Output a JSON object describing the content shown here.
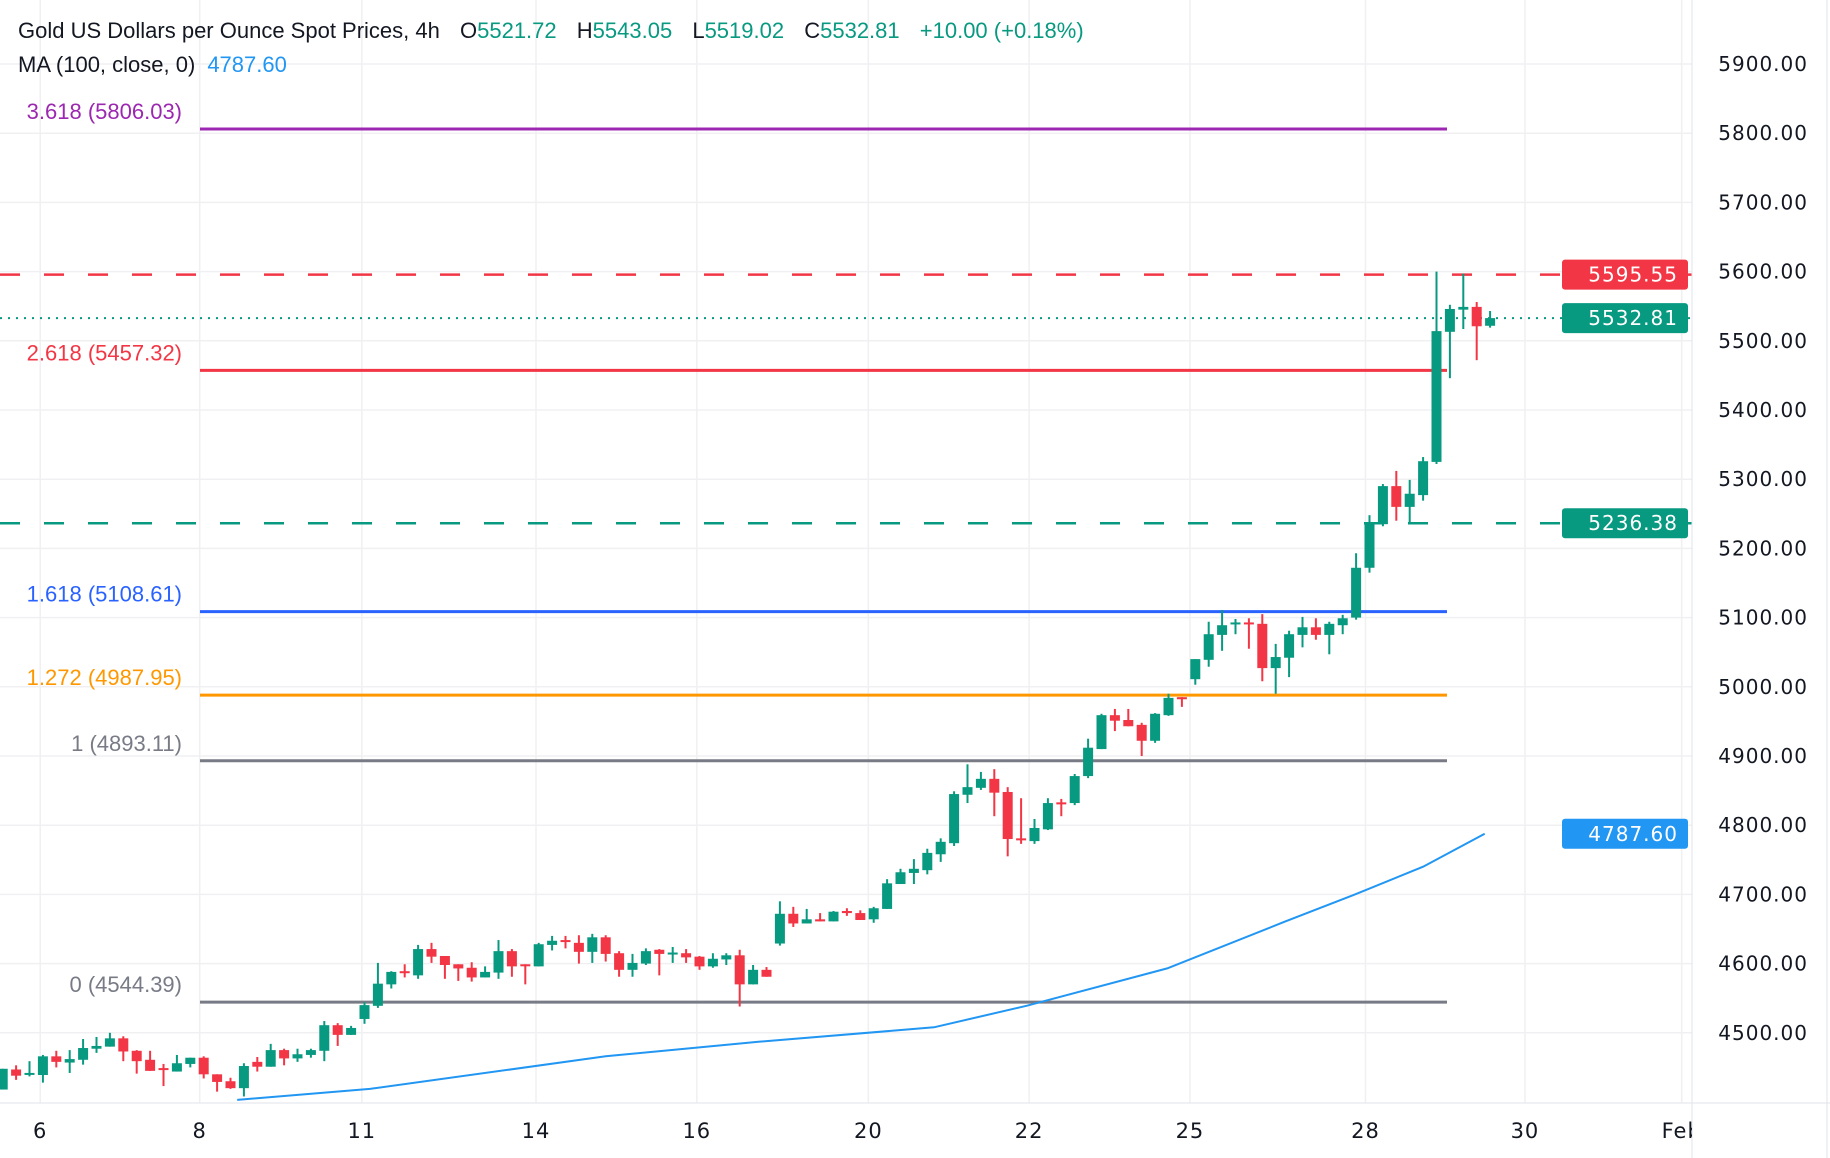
{
  "header": {
    "title": "Gold US Dollars per Ounce Spot Prices, 4h",
    "o_label": "O",
    "o_value": "5521.72",
    "h_label": "H",
    "h_value": "5543.05",
    "l_label": "L",
    "l_value": "5519.02",
    "c_label": "C",
    "c_value": "5532.81",
    "change": "+10.00 (+0.18%)"
  },
  "ma_legend": {
    "label": "MA (100, close, 0)",
    "value": "4787.60"
  },
  "colors": {
    "up": "#089981",
    "down": "#f23645",
    "ma": "#2196f3",
    "grid": "#f0f0f3"
  },
  "chart_data": {
    "type": "candlestick",
    "title": "Gold US Dollars per Ounce Spot Prices, 4h",
    "ylim": [
      4420,
      5960
    ],
    "grid": true,
    "y_ticks": [
      "5900.00",
      "5800.00",
      "5700.00",
      "5600.00",
      "5500.00",
      "5400.00",
      "5300.00",
      "5200.00",
      "5100.00",
      "5000.00",
      "4900.00",
      "4800.00",
      "4700.00",
      "4600.00",
      "4500.00"
    ],
    "x_ticks": [
      {
        "label": "6",
        "bar": 2.8
      },
      {
        "label": "8",
        "bar": 14.7
      },
      {
        "label": "11",
        "bar": 26.8
      },
      {
        "label": "14",
        "bar": 39.8
      },
      {
        "label": "16",
        "bar": 51.8
      },
      {
        "label": "20",
        "bar": 64.6
      },
      {
        "label": "22",
        "bar": 76.6
      },
      {
        "label": "25",
        "bar": 88.6
      },
      {
        "label": "28",
        "bar": 101.7
      },
      {
        "label": "30",
        "bar": 113.6
      },
      {
        "label": "Feb",
        "bar": 125.3
      }
    ],
    "candles_ohlc": [
      [
        4418,
        4448,
        4418,
        4448
      ],
      [
        4447,
        4453,
        4432,
        4438
      ],
      [
        4440,
        4459,
        4437,
        4442
      ],
      [
        4439,
        4468,
        4428,
        4466
      ],
      [
        4466,
        4474,
        4450,
        4458
      ],
      [
        4457,
        4475,
        4442,
        4462
      ],
      [
        4461,
        4491,
        4454,
        4478
      ],
      [
        4477,
        4494,
        4471,
        4481
      ],
      [
        4480,
        4500,
        4480,
        4492
      ],
      [
        4492,
        4495,
        4459,
        4473
      ],
      [
        4474,
        4475,
        4441,
        4459
      ],
      [
        4461,
        4474,
        4445,
        4445
      ],
      [
        4449,
        4455,
        4423,
        4447
      ],
      [
        4444,
        4468,
        4444,
        4456
      ],
      [
        4455,
        4464,
        4450,
        4464
      ],
      [
        4464,
        4466,
        4434,
        4440
      ],
      [
        4440,
        4440,
        4415,
        4429
      ],
      [
        4430,
        4435,
        4419,
        4420
      ],
      [
        4420,
        4456,
        4408,
        4452
      ],
      [
        4458,
        4465,
        4444,
        4451
      ],
      [
        4451,
        4484,
        4451,
        4475
      ],
      [
        4475,
        4477,
        4453,
        4463
      ],
      [
        4463,
        4477,
        4458,
        4469
      ],
      [
        4468,
        4477,
        4464,
        4475
      ],
      [
        4474,
        4517,
        4459,
        4511
      ],
      [
        4511,
        4514,
        4481,
        4497
      ],
      [
        4497,
        4510,
        4497,
        4507
      ],
      [
        4520,
        4544,
        4513,
        4540
      ],
      [
        4539,
        4601,
        4536,
        4571
      ],
      [
        4570,
        4589,
        4564,
        4588
      ],
      [
        4589,
        4599,
        4580,
        4587
      ],
      [
        4583,
        4627,
        4578,
        4621
      ],
      [
        4621,
        4630,
        4601,
        4610
      ],
      [
        4611,
        4611,
        4578,
        4598
      ],
      [
        4599,
        4599,
        4575,
        4593
      ],
      [
        4594,
        4602,
        4574,
        4580
      ],
      [
        4580,
        4596,
        4580,
        4588
      ],
      [
        4587,
        4634,
        4578,
        4618
      ],
      [
        4618,
        4621,
        4581,
        4596
      ],
      [
        4599,
        4599,
        4570,
        4597
      ],
      [
        4596,
        4630,
        4596,
        4628
      ],
      [
        4627,
        4640,
        4619,
        4633
      ],
      [
        4634,
        4640,
        4622,
        4633
      ],
      [
        4630,
        4641,
        4600,
        4617
      ],
      [
        4617,
        4643,
        4601,
        4638
      ],
      [
        4638,
        4641,
        4603,
        4614
      ],
      [
        4615,
        4618,
        4581,
        4591
      ],
      [
        4591,
        4614,
        4581,
        4601
      ],
      [
        4600,
        4622,
        4598,
        4618
      ],
      [
        4620,
        4621,
        4583,
        4614
      ],
      [
        4615,
        4624,
        4601,
        4616
      ],
      [
        4615,
        4621,
        4601,
        4609
      ],
      [
        4610,
        4611,
        4591,
        4596
      ],
      [
        4596,
        4615,
        4594,
        4607
      ],
      [
        4606,
        4615,
        4598,
        4612
      ],
      [
        4612,
        4620,
        4538,
        4570
      ],
      [
        4570,
        4598,
        4570,
        4591
      ],
      [
        4591,
        4595,
        4581,
        4581
      ],
      [
        4629,
        4690,
        4626,
        4672
      ],
      [
        4672,
        4682,
        4653,
        4658
      ],
      [
        4658,
        4679,
        4658,
        4664
      ],
      [
        4664,
        4673,
        4661,
        4661
      ],
      [
        4661,
        4676,
        4661,
        4675
      ],
      [
        4676,
        4680,
        4669,
        4673
      ],
      [
        4673,
        4677,
        4663,
        4663
      ],
      [
        4664,
        4682,
        4659,
        4680
      ],
      [
        4679,
        4722,
        4679,
        4716
      ],
      [
        4715,
        4737,
        4715,
        4732
      ],
      [
        4731,
        4751,
        4715,
        4737
      ],
      [
        4735,
        4766,
        4729,
        4760
      ],
      [
        4758,
        4781,
        4747,
        4776
      ],
      [
        4774,
        4849,
        4770,
        4845
      ],
      [
        4844,
        4888,
        4832,
        4855
      ],
      [
        4854,
        4877,
        4851,
        4867
      ],
      [
        4867,
        4881,
        4813,
        4847
      ],
      [
        4848,
        4855,
        4755,
        4780
      ],
      [
        4781,
        4839,
        4773,
        4779
      ],
      [
        4777,
        4809,
        4773,
        4796
      ],
      [
        4794,
        4839,
        4793,
        4832
      ],
      [
        4833,
        4838,
        4813,
        4832
      ],
      [
        4832,
        4874,
        4829,
        4871
      ],
      [
        4871,
        4925,
        4868,
        4912
      ],
      [
        4910,
        4961,
        4910,
        4959
      ],
      [
        4959,
        4968,
        4936,
        4951
      ],
      [
        4952,
        4968,
        4943,
        4943
      ],
      [
        4945,
        4948,
        4900,
        4922
      ],
      [
        4922,
        4962,
        4919,
        4961
      ],
      [
        4959,
        4990,
        4958,
        4984
      ],
      [
        4985,
        4985,
        4971,
        4982
      ],
      [
        5011,
        5040,
        5003,
        5040
      ],
      [
        5039,
        5094,
        5029,
        5076
      ],
      [
        5075,
        5111,
        5052,
        5089
      ],
      [
        5092,
        5098,
        5076,
        5093
      ],
      [
        5093,
        5099,
        5055,
        5092
      ],
      [
        5091,
        5105,
        5008,
        5027
      ],
      [
        5027,
        5062,
        4990,
        5043
      ],
      [
        5042,
        5081,
        5014,
        5076
      ],
      [
        5075,
        5101,
        5057,
        5086
      ],
      [
        5086,
        5099,
        5068,
        5075
      ],
      [
        5075,
        5094,
        5047,
        5091
      ],
      [
        5089,
        5104,
        5076,
        5099
      ],
      [
        5100,
        5193,
        5097,
        5172
      ],
      [
        5172,
        5248,
        5165,
        5235
      ],
      [
        5235,
        5293,
        5232,
        5290
      ],
      [
        5290,
        5312,
        5240,
        5260
      ],
      [
        5260,
        5299,
        5235,
        5279
      ],
      [
        5277,
        5332,
        5269,
        5326
      ],
      [
        5325,
        5600,
        5322,
        5514
      ],
      [
        5513,
        5552,
        5446,
        5546
      ],
      [
        5545,
        5597,
        5517,
        5549
      ],
      [
        5549,
        5556,
        5472,
        5521
      ],
      [
        5521.72,
        5543.05,
        5519.02,
        5532.81
      ]
    ],
    "ma_series": {
      "name": "MA (100, close, 0)",
      "points": [
        [
          17.5,
          4403
        ],
        [
          27.4,
          4419
        ],
        [
          45,
          4466
        ],
        [
          56.4,
          4487
        ],
        [
          69.5,
          4508
        ],
        [
          76.4,
          4539
        ],
        [
          86.9,
          4593
        ],
        [
          95.6,
          4660
        ],
        [
          100.8,
          4699
        ],
        [
          106,
          4740
        ],
        [
          110.6,
          4787.6
        ]
      ]
    },
    "fib_levels": [
      {
        "label": "3.618 (5806.03)",
        "value": 5806.03,
        "color": "#9c27b0"
      },
      {
        "label": "2.618 (5457.32)",
        "value": 5457.32,
        "color": "#f23645"
      },
      {
        "label": "1.618 (5108.61)",
        "value": 5108.61,
        "color": "#2962ff"
      },
      {
        "label": "1.272 (4987.95)",
        "value": 4987.95,
        "color": "#ff9800"
      },
      {
        "label": "1 (4893.11)",
        "value": 4893.11,
        "color": "#787b86"
      },
      {
        "label": "0 (4544.39)",
        "value": 4544.39,
        "color": "#787b86"
      }
    ],
    "horizontal_lines": [
      {
        "value": 5595.55,
        "label": "5595.55",
        "color": "#f23645",
        "style": "dashed"
      },
      {
        "value": 5236.38,
        "label": "5236.38",
        "color": "#089981",
        "style": "dashed"
      },
      {
        "value": 5532.81,
        "label": "5532.81",
        "color": "#089981",
        "style": "dotted"
      }
    ],
    "ma_badge": {
      "value": 4787.6,
      "label": "4787.60",
      "color": "#2196f3"
    }
  }
}
